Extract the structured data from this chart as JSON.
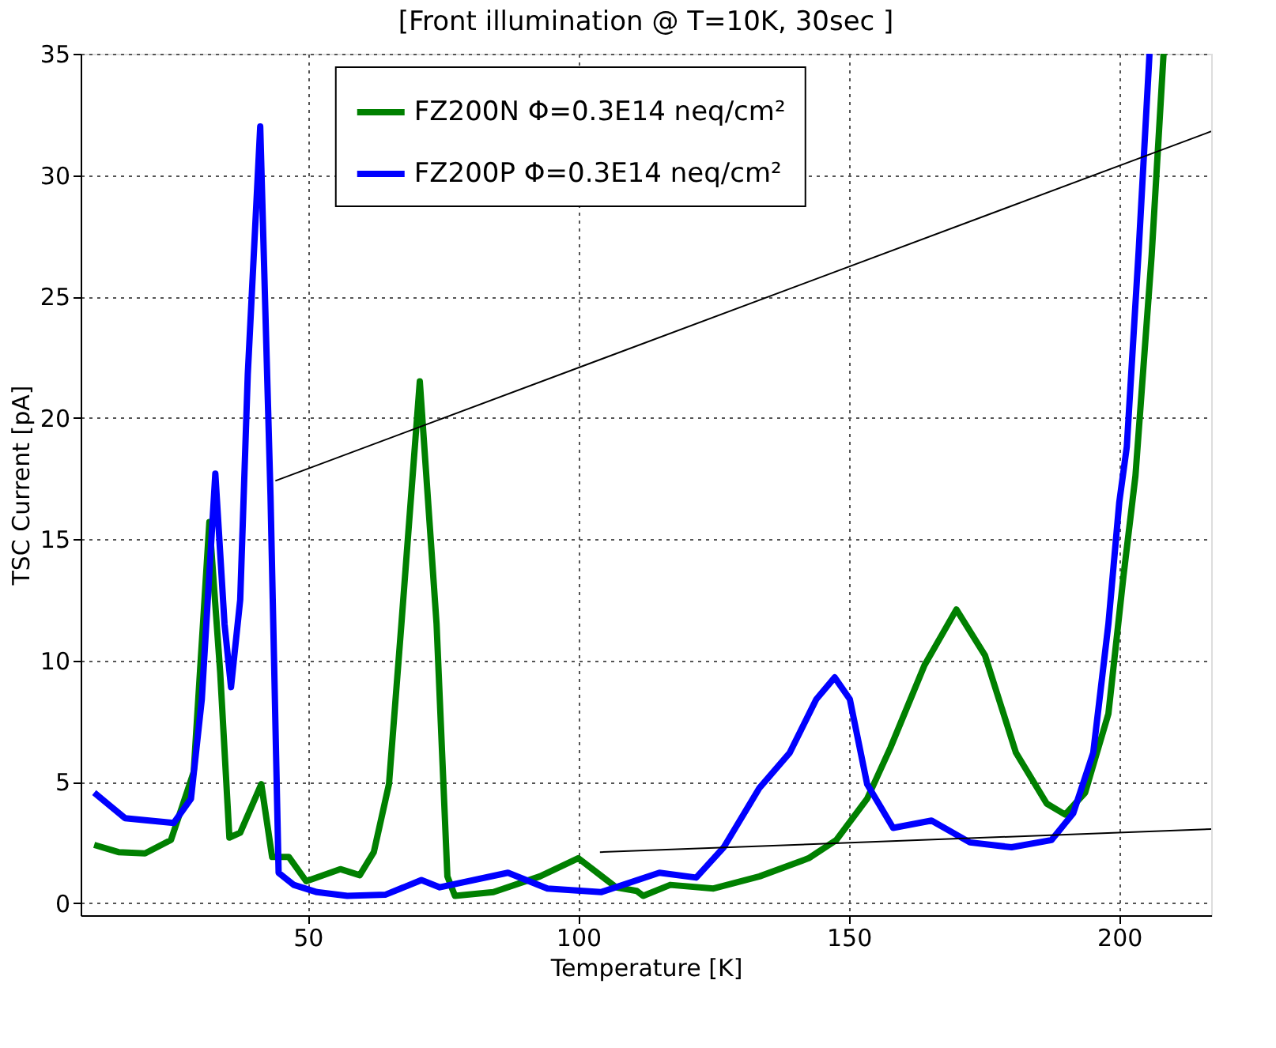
{
  "chart_data": {
    "type": "line",
    "title": "[Front illumination @ T=10K, 30sec ]",
    "xlabel": "Temperature [K]",
    "ylabel": "TSC Current [pA]",
    "xlim": [
      8,
      217
    ],
    "ylim": [
      -0.5,
      35
    ],
    "xticks": [
      50,
      100,
      150,
      200
    ],
    "yticks": [
      0,
      5,
      10,
      15,
      20,
      25,
      30,
      35
    ],
    "grid": true,
    "legend": "top",
    "line_style": "solid",
    "marker": "none",
    "series": [
      {
        "name": "FZ200N Φ=0.3E14 neq/cm²",
        "color": "#008000",
        "x": [
          10.5,
          15,
          19.9,
          24.7,
          28.9,
          31.8,
          33.8,
          35.5,
          37.5,
          41.4,
          43.4,
          46.5,
          49.7,
          56,
          59.6,
          62.2,
          65,
          67.3,
          70.7,
          73.8,
          75.8,
          77.2,
          84.3,
          92.9,
          100,
          107,
          110.8,
          112,
          117,
          125,
          133.5,
          142.6,
          147.7,
          153.4,
          157.7,
          164,
          169.9,
          175.2,
          180.9,
          186.6,
          190,
          193.7,
          198,
          200.8,
          203,
          206,
          208.2
        ],
        "values": [
          2.4,
          2.1,
          2.05,
          2.6,
          5.4,
          15.7,
          9.5,
          2.7,
          2.9,
          4.9,
          1.9,
          1.9,
          0.9,
          1.4,
          1.15,
          2.1,
          4.9,
          11.5,
          21.5,
          11.5,
          1.1,
          0.3,
          0.45,
          1.1,
          1.85,
          0.65,
          0.5,
          0.3,
          0.75,
          0.6,
          1.1,
          1.85,
          2.6,
          4.3,
          6.4,
          9.8,
          12.1,
          10.2,
          6.2,
          4.1,
          3.65,
          4.55,
          7.8,
          13.5,
          17.6,
          26.7,
          35
        ]
      },
      {
        "name": "FZ200P Φ=0.3E14 neq/cm²",
        "color": "#0000ff",
        "x": [
          10.5,
          16.2,
          25.2,
          28.4,
          30.4,
          32.9,
          34.6,
          35.8,
          37.5,
          38.9,
          41.2,
          43.1,
          44.6,
          47.4,
          51.7,
          57.3,
          64.4,
          71,
          74.4,
          87,
          94.3,
          104.2,
          115,
          121.8,
          126.9,
          133.5,
          139.1,
          144,
          147.4,
          150.2,
          153.4,
          158.2,
          165.3,
          172.4,
          180.1,
          187.5,
          191.5,
          195.2,
          198,
          200,
          201.4,
          203.6,
          205.6
        ],
        "values": [
          4.55,
          3.5,
          3.3,
          4.3,
          8.4,
          17.7,
          11.5,
          8.9,
          12.5,
          21.8,
          32,
          16.8,
          1.25,
          0.75,
          0.45,
          0.3,
          0.35,
          0.95,
          0.65,
          1.25,
          0.6,
          0.45,
          1.25,
          1.05,
          2.3,
          4.75,
          6.2,
          8.4,
          9.3,
          8.4,
          4.9,
          3.1,
          3.4,
          2.5,
          2.3,
          2.6,
          3.7,
          6.2,
          11.5,
          16.5,
          18.8,
          26.9,
          35
        ]
      },
      {
        "color": "#000000",
        "x": [
          44,
          217
        ],
        "values": [
          17.4,
          31.8
        ]
      },
      {
        "color": "#000000",
        "x": [
          104,
          217
        ],
        "values": [
          2.1,
          3.05
        ]
      }
    ]
  }
}
